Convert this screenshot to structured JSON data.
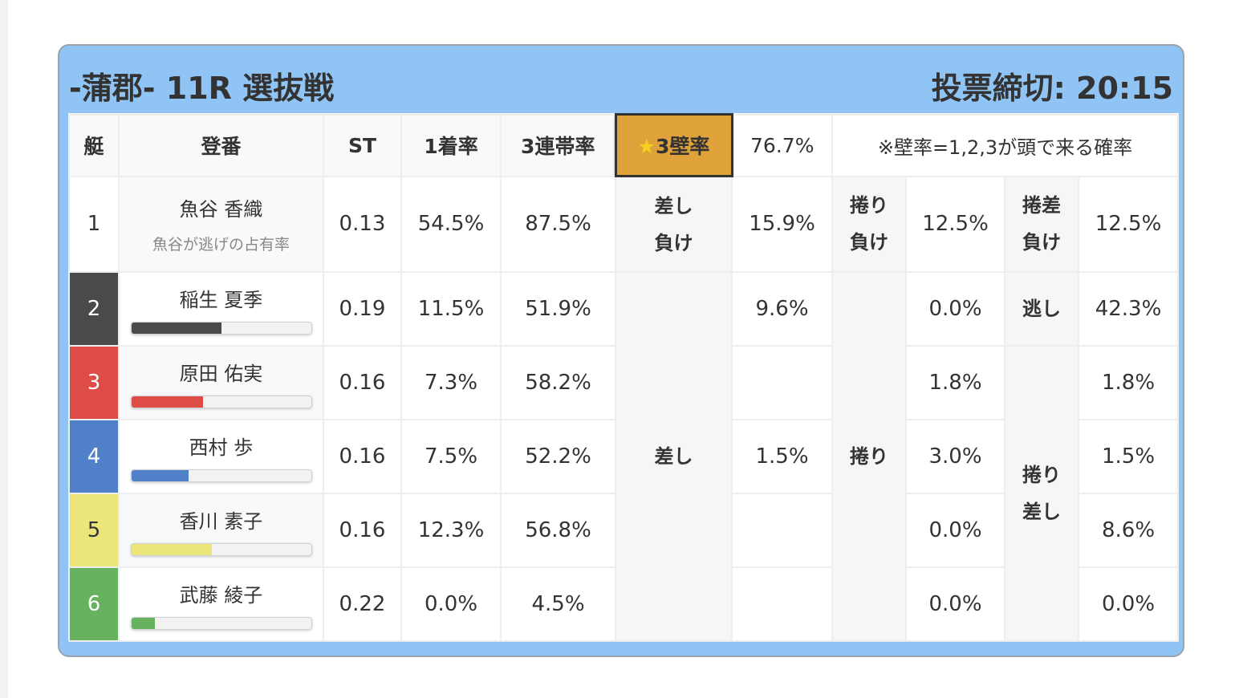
{
  "header": {
    "title": "-蒲郡- 11R 選抜戦",
    "deadline": "投票締切: 20:15"
  },
  "columns": {
    "boat": "艇",
    "name": "登番",
    "st": "ST",
    "first": "1着率",
    "trio": "3連帯率",
    "wall": "★3壁率",
    "wall_star": "★",
    "wall_label": "3壁率",
    "wall_value": "76.7%",
    "note": "※壁率=1,2,3が頭で来る確率"
  },
  "colors": {
    "boat1": "#ffffff",
    "boat2": "#4a4a4a",
    "boat3": "#dd4c47",
    "boat4": "#4f80c8",
    "boat5": "#ebe57a",
    "boat6": "#66b25f",
    "highlight": "#e0a23a",
    "card": "#90c4f5"
  },
  "racers": [
    {
      "boat": "1",
      "name": "魚谷 香織",
      "sub": "魚谷が逃げの占有率",
      "st": "0.13",
      "first": "54.5%",
      "trio": "87.5%"
    },
    {
      "boat": "2",
      "name": "稲生 夏季",
      "st": "0.19",
      "first": "11.5%",
      "trio": "51.9%",
      "bar": 0.5
    },
    {
      "boat": "3",
      "name": "原田 佑実",
      "st": "0.16",
      "first": "7.3%",
      "trio": "58.2%",
      "bar": 0.4
    },
    {
      "boat": "4",
      "name": "西村 歩",
      "st": "0.16",
      "first": "7.5%",
      "trio": "52.2%",
      "bar": 0.32
    },
    {
      "boat": "5",
      "name": "香川 素子",
      "st": "0.16",
      "first": "12.3%",
      "trio": "56.8%",
      "bar": 0.45
    },
    {
      "boat": "6",
      "name": "武藤 綾子",
      "st": "0.22",
      "first": "0.0%",
      "trio": "4.5%",
      "bar": 0.13
    }
  ],
  "row1": {
    "sashi_make_1": "差し",
    "sashi_make_2": "負け",
    "sashi_make_val": "15.9%",
    "makuri_make_1": "捲り",
    "makuri_make_2": "負け",
    "makuri_make_val": "12.5%",
    "makusa_make_1": "捲差",
    "makusa_make_2": "負け",
    "makusa_make_val": "12.5%"
  },
  "kimarite": {
    "sashi": "差し",
    "sashi_vals": [
      "9.6%",
      "",
      "1.5%",
      "",
      ""
    ],
    "makuri": "捲り",
    "makuri_vals": [
      "0.0%",
      "1.8%",
      "3.0%",
      "0.0%",
      "0.0%"
    ],
    "nige": "逃し",
    "nige_val": "42.3%",
    "makurisashi_1": "捲り",
    "makurisashi_2": "差し",
    "makurisashi_vals": [
      "1.8%",
      "1.5%",
      "8.6%",
      "0.0%"
    ]
  }
}
